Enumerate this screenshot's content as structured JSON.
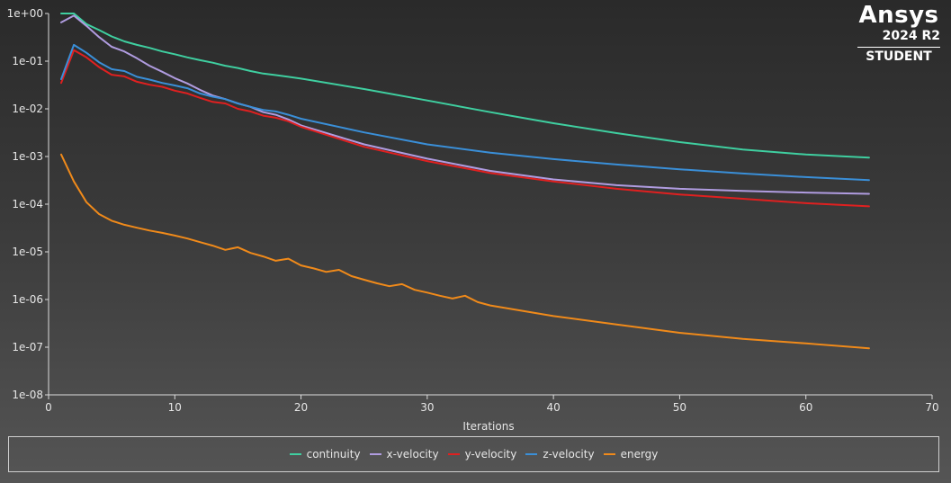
{
  "brand": {
    "name": "Ansys",
    "version": "2024 R2",
    "edition": "STUDENT"
  },
  "chart_data": {
    "type": "line",
    "title": "",
    "xlabel": "Iterations",
    "ylabel": "",
    "xlim": [
      0,
      70
    ],
    "ylim": [
      1e-08,
      1
    ],
    "yscale": "log",
    "xticks": [
      0,
      10,
      20,
      30,
      40,
      50,
      60,
      70
    ],
    "yticks": [
      "1e+00",
      "1e-01",
      "1e-02",
      "1e-03",
      "1e-04",
      "1e-05",
      "1e-06",
      "1e-07",
      "1e-08"
    ],
    "grid": false,
    "legend_position": "bottom",
    "series": [
      {
        "name": "continuity",
        "color": "#3fcfa0",
        "x": [
          1,
          2,
          3,
          4,
          5,
          6,
          7,
          8,
          9,
          10,
          11,
          12,
          13,
          14,
          15,
          16,
          17,
          18,
          19,
          20,
          25,
          30,
          35,
          40,
          45,
          50,
          55,
          60,
          65
        ],
        "y": [
          1.0,
          1.0,
          0.6,
          0.45,
          0.33,
          0.26,
          0.22,
          0.19,
          0.16,
          0.14,
          0.12,
          0.105,
          0.093,
          0.08,
          0.072,
          0.062,
          0.055,
          0.051,
          0.047,
          0.043,
          0.026,
          0.015,
          0.0085,
          0.005,
          0.0031,
          0.002,
          0.0014,
          0.0011,
          0.00095
        ]
      },
      {
        "name": "x-velocity",
        "color": "#b09ce0",
        "x": [
          1,
          2,
          3,
          4,
          5,
          6,
          7,
          8,
          9,
          10,
          11,
          12,
          13,
          14,
          15,
          16,
          17,
          18,
          19,
          20,
          25,
          30,
          35,
          40,
          45,
          50,
          55,
          60,
          65
        ],
        "y": [
          0.65,
          0.9,
          0.55,
          0.32,
          0.2,
          0.16,
          0.115,
          0.08,
          0.06,
          0.044,
          0.034,
          0.025,
          0.019,
          0.016,
          0.013,
          0.011,
          0.0085,
          0.0075,
          0.006,
          0.0045,
          0.0018,
          0.0009,
          0.0005,
          0.00033,
          0.00025,
          0.00021,
          0.00019,
          0.000175,
          0.000165
        ]
      },
      {
        "name": "y-velocity",
        "color": "#e02020",
        "x": [
          1,
          2,
          3,
          4,
          5,
          6,
          7,
          8,
          9,
          10,
          11,
          12,
          13,
          14,
          15,
          16,
          17,
          18,
          19,
          20,
          25,
          30,
          35,
          40,
          45,
          50,
          55,
          60,
          65
        ],
        "y": [
          0.035,
          0.17,
          0.12,
          0.075,
          0.052,
          0.048,
          0.037,
          0.032,
          0.029,
          0.024,
          0.021,
          0.017,
          0.014,
          0.013,
          0.01,
          0.0088,
          0.0072,
          0.0065,
          0.0055,
          0.0042,
          0.0016,
          0.0008,
          0.00045,
          0.0003,
          0.00021,
          0.00016,
          0.00013,
          0.000105,
          9e-05
        ]
      },
      {
        "name": "z-velocity",
        "color": "#3a8fd8",
        "x": [
          1,
          2,
          3,
          4,
          5,
          6,
          7,
          8,
          9,
          10,
          11,
          12,
          13,
          14,
          15,
          16,
          17,
          18,
          19,
          20,
          25,
          30,
          35,
          40,
          45,
          50,
          55,
          60,
          65
        ],
        "y": [
          0.042,
          0.22,
          0.15,
          0.095,
          0.068,
          0.062,
          0.047,
          0.041,
          0.035,
          0.031,
          0.027,
          0.021,
          0.018,
          0.016,
          0.013,
          0.011,
          0.0095,
          0.0088,
          0.0075,
          0.0062,
          0.0032,
          0.0018,
          0.0012,
          0.00088,
          0.00068,
          0.00054,
          0.00044,
          0.00037,
          0.00032
        ]
      },
      {
        "name": "energy",
        "color": "#f08a1a",
        "x": [
          1,
          2,
          3,
          4,
          5,
          6,
          7,
          8,
          9,
          10,
          11,
          12,
          13,
          14,
          15,
          16,
          17,
          18,
          19,
          20,
          21,
          22,
          23,
          24,
          25,
          26,
          27,
          28,
          29,
          30,
          31,
          32,
          33,
          34,
          35,
          40,
          45,
          50,
          55,
          60,
          65
        ],
        "y": [
          0.0011,
          0.0003,
          0.00011,
          6.2e-05,
          4.5e-05,
          3.7e-05,
          3.2e-05,
          2.8e-05,
          2.5e-05,
          2.2e-05,
          1.9e-05,
          1.6e-05,
          1.35e-05,
          1.1e-05,
          1.25e-05,
          9.5e-06,
          8e-06,
          6.5e-06,
          7.2e-06,
          5.2e-06,
          4.5e-06,
          3.8e-06,
          4.2e-06,
          3.1e-06,
          2.6e-06,
          2.2e-06,
          1.9e-06,
          2.1e-06,
          1.6e-06,
          1.4e-06,
          1.2e-06,
          1.05e-06,
          1.2e-06,
          8.8e-07,
          7.5e-07,
          4.5e-07,
          3e-07,
          2e-07,
          1.5e-07,
          1.2e-07,
          9.5e-08
        ]
      }
    ]
  }
}
